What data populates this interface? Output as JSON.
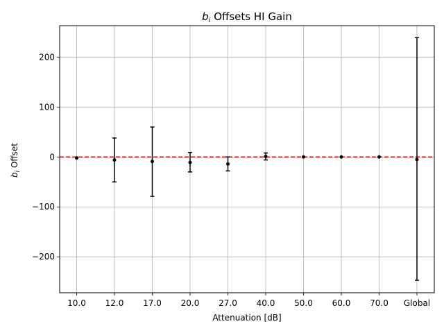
{
  "chart_data": {
    "type": "scatter",
    "title": "bi Offsets HI Gain",
    "xlabel": "Attenuation [dB]",
    "ylabel": "bi Offset",
    "categories": [
      "10.0",
      "12.0",
      "17.0",
      "20.0",
      "27.0",
      "40.0",
      "50.0",
      "60.0",
      "70.0",
      "Global"
    ],
    "y_ticks": [
      -200,
      -100,
      0,
      100,
      200
    ],
    "y_tick_labels": [
      "−200",
      "−100",
      "0",
      "100",
      "200"
    ],
    "ylim": [
      -272,
      263
    ],
    "grid": true,
    "series": [
      {
        "values": [
          -2,
          -6,
          -9,
          -11,
          -14,
          1,
          0,
          0,
          0,
          -5
        ],
        "err_low": [
          -2,
          -50,
          -79,
          -30,
          -28,
          -6,
          0,
          0,
          0,
          -247
        ],
        "err_high": [
          -2,
          38,
          60,
          9,
          0,
          8,
          0,
          0,
          0,
          239
        ]
      }
    ],
    "reference_line": {
      "y": 0,
      "style": "dashed",
      "color": "#ff0000"
    },
    "marker_color": "#000000"
  }
}
